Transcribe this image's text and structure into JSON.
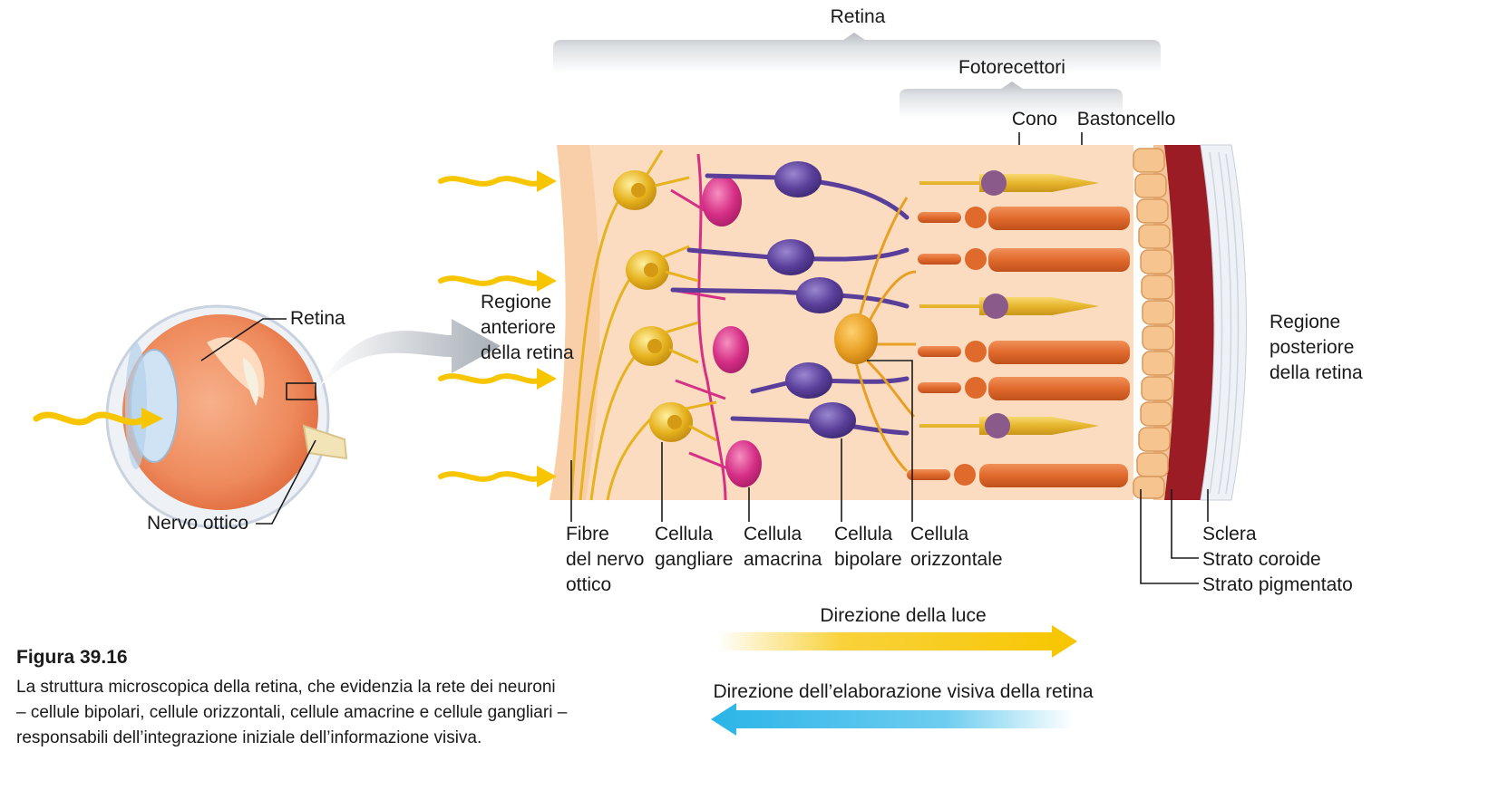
{
  "eye": {
    "retina_label": "Retina",
    "optic_nerve_label": "Nervo ottico"
  },
  "brackets": {
    "retina": "Retina",
    "photoreceptors": "Fotorecettori",
    "cone": "Cono",
    "rod": "Bastoncello"
  },
  "regions": {
    "anterior": [
      "Regione",
      "anteriore",
      "della retina"
    ],
    "posterior": [
      "Regione",
      "posteriore",
      "della retina"
    ]
  },
  "bottom_labels": {
    "optic_fibers": [
      "Fibre",
      "del nervo",
      "ottico"
    ],
    "ganglion": [
      "Cellula",
      "gangliare"
    ],
    "amacrine": [
      "Cellula",
      "amacrina"
    ],
    "bipolar": [
      "Cellula",
      "bipolare"
    ],
    "horizontal": [
      "Cellula",
      "orizzontale"
    ],
    "sclera": "Sclera",
    "choroid": "Strato coroide",
    "pigment": "Strato pigmentato"
  },
  "arrows": {
    "light_direction": "Direzione della luce",
    "processing_direction": "Direzione dell’elaborazione visiva della retina"
  },
  "caption": {
    "title": "Figura 39.16",
    "lines": [
      "La struttura microscopica della retina, che evidenzia la rete dei neuroni",
      "– cellule bipolari, cellule orizzontali, cellule amacrine e cellule gangliari –",
      "responsabili dell’integrazione iniziale dell’informazione visiva."
    ]
  },
  "colors": {
    "light": "#f7c600",
    "processing": "#2ab4e8",
    "ganglion": "#e6b21e",
    "amacrine": "#d62f86",
    "bipolar": "#5a3f9a",
    "rod": "#e06a2c",
    "cone": "#e7b52d",
    "choroid": "#9b1c24",
    "retina_bg": "#fbdcc0"
  }
}
